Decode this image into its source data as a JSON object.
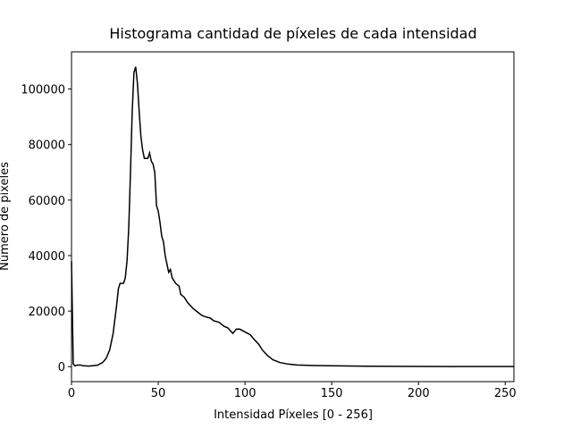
{
  "chart_data": {
    "type": "line",
    "title": "Histograma cantidad de píxeles de cada intensidad",
    "x_label": "Intensidad Píxeles [0 - 256]",
    "y_label": "Número de píxeles",
    "x": [
      0,
      1,
      2,
      3,
      5,
      7,
      10,
      15,
      18,
      20,
      22,
      24,
      26,
      27,
      28,
      30,
      31,
      32,
      33,
      34,
      35,
      36,
      37,
      38,
      39,
      40,
      41,
      42,
      43,
      44,
      45,
      46,
      47,
      48,
      49,
      50,
      51,
      52,
      53,
      54,
      55,
      56,
      57,
      58,
      60,
      62,
      63,
      65,
      67,
      70,
      72,
      75,
      77,
      80,
      82,
      85,
      88,
      90,
      93,
      95,
      97,
      100,
      103,
      105,
      108,
      110,
      113,
      116,
      120,
      125,
      130,
      140,
      150,
      170,
      200,
      230,
      255
    ],
    "series": [
      {
        "name": "Número de píxeles",
        "color": "#000000",
        "values": [
          38000,
          1000,
          300,
          500,
          600,
          300,
          200,
          500,
          1500,
          3000,
          6000,
          12000,
          22000,
          28000,
          30000,
          30000,
          32000,
          38000,
          50000,
          70000,
          92000,
          106000,
          108000,
          102000,
          92000,
          83000,
          78000,
          75000,
          75000,
          75000,
          77000,
          74000,
          73000,
          70000,
          58000,
          56000,
          52000,
          47000,
          45000,
          40000,
          37000,
          34000,
          35000,
          32000,
          30000,
          29000,
          26000,
          25000,
          23000,
          21000,
          20000,
          18500,
          18000,
          17500,
          16500,
          16000,
          14500,
          14000,
          12000,
          13500,
          13500,
          12500,
          11500,
          10000,
          8000,
          6000,
          4000,
          2500,
          1500,
          900,
          600,
          400,
          300,
          150,
          80,
          40,
          20
        ]
      }
    ],
    "xlim": [
      0,
      255
    ],
    "ylim": [
      -5400,
      113400
    ],
    "xticks": [
      0,
      50,
      100,
      150,
      200,
      250
    ],
    "yticks": [
      0,
      20000,
      40000,
      60000,
      80000,
      100000
    ]
  }
}
